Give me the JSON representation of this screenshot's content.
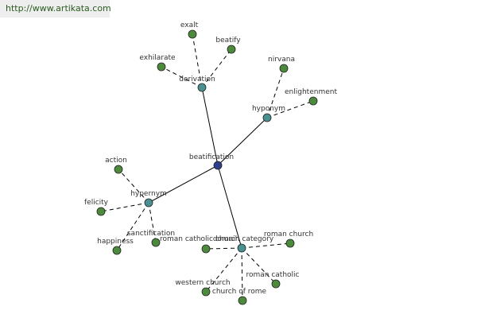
{
  "url": "http://www.artikata.com",
  "colors": {
    "root": "#2f3f8c",
    "relation": "#4a9090",
    "leaf": "#4c8a3c"
  },
  "root": {
    "id": "beatification",
    "label": "beatification"
  },
  "relations": [
    {
      "id": "derivation",
      "label": "derivation"
    },
    {
      "id": "hyponym",
      "label": "hyponym"
    },
    {
      "id": "hypernym",
      "label": "hypernym"
    },
    {
      "id": "domain_category",
      "label": "domain category"
    }
  ],
  "leaves": [
    {
      "id": "exalt",
      "label": "exalt",
      "relation": "derivation"
    },
    {
      "id": "beatify",
      "label": "beatify",
      "relation": "derivation"
    },
    {
      "id": "exhilarate",
      "label": "exhilarate",
      "relation": "derivation"
    },
    {
      "id": "nirvana",
      "label": "nirvana",
      "relation": "hyponym"
    },
    {
      "id": "enlightenment",
      "label": "enlightenment",
      "relation": "hyponym"
    },
    {
      "id": "action",
      "label": "action",
      "relation": "hypernym"
    },
    {
      "id": "felicity",
      "label": "felicity",
      "relation": "hypernym"
    },
    {
      "id": "happiness",
      "label": "happiness",
      "relation": "hypernym"
    },
    {
      "id": "sanctification",
      "label": "sanctification",
      "relation": "hypernym"
    },
    {
      "id": "roman_catholic_church",
      "label": "roman catholic church",
      "relation": "domain_category"
    },
    {
      "id": "roman_church",
      "label": "roman church",
      "relation": "domain_category"
    },
    {
      "id": "roman_catholic",
      "label": "roman catholic",
      "relation": "domain_category"
    },
    {
      "id": "western_church",
      "label": "western church",
      "relation": "domain_category"
    },
    {
      "id": "church_of_rome",
      "label": "church of rome",
      "relation": "domain_category"
    }
  ]
}
